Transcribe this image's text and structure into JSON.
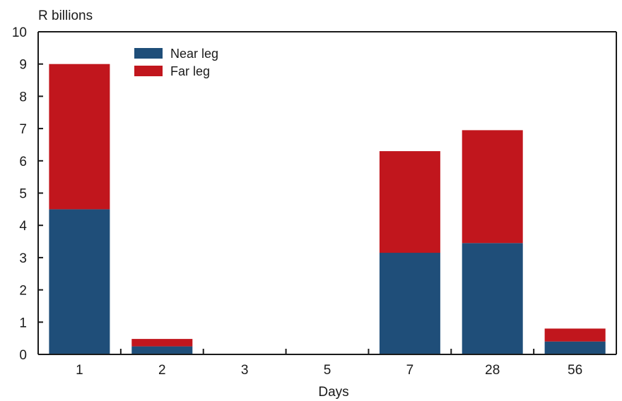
{
  "chart_data": {
    "type": "bar",
    "stacked": true,
    "ylabel": "R billions",
    "xlabel": "Days",
    "ylim": [
      0,
      10
    ],
    "yticks": [
      "0",
      "1",
      "2",
      "3",
      "4",
      "5",
      "6",
      "7",
      "8",
      "9",
      "10"
    ],
    "categories": [
      "1",
      "2",
      "3",
      "5",
      "7",
      "28",
      "56"
    ],
    "series": [
      {
        "name": "Near leg",
        "color": "#1f4e79",
        "values": [
          4.5,
          0.25,
          0.0,
          0.0,
          3.15,
          3.45,
          0.4
        ]
      },
      {
        "name": "Far leg",
        "color": "#c1161d",
        "values": [
          4.5,
          0.23,
          0.0,
          0.0,
          3.15,
          3.5,
          0.4
        ]
      }
    ],
    "legend_position": "top-left inside plot",
    "grid": false
  }
}
